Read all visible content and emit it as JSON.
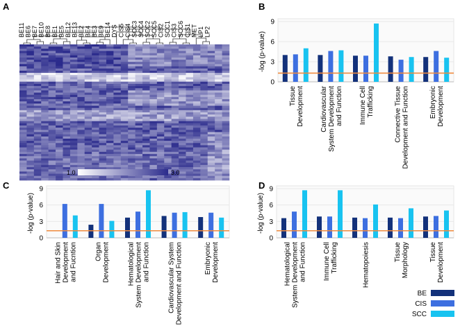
{
  "panels": {
    "a": "A",
    "b": "B",
    "c": "C",
    "d": "D"
  },
  "heatmap": {
    "samples": [
      "BE11",
      "BE6",
      "BE7",
      "BE10",
      "BE8",
      "BE1",
      "BE5",
      "BE12",
      "BE13",
      "BE2",
      "BE4",
      "BE3",
      "BE9",
      "BE14",
      "DYS",
      "CIS5",
      "CIS4",
      "SCC3",
      "SCC4",
      "SCC2",
      "SCC5",
      "CIS2",
      "SCC1",
      "CIS3",
      "SCC6",
      "CIS1",
      "MET",
      "LP1",
      "LP2"
    ],
    "colorbar_min": "1.0",
    "colorbar_max": "3.0",
    "colors": {
      "low": "#ffffff",
      "high": "#2b2b8c"
    }
  },
  "legend": [
    {
      "label": "BE",
      "color": "#13317a"
    },
    {
      "label": "CIS",
      "color": "#3d6fe0"
    },
    {
      "label": "SCC",
      "color": "#18c3f0"
    }
  ],
  "threshold_color": "#f08a3c",
  "chart_data": [
    {
      "panel": "B",
      "type": "bar",
      "ylabel": "-log (p-value)",
      "yticks": [
        0,
        3,
        6,
        9
      ],
      "ylim": [
        0,
        9
      ],
      "threshold": 1.3,
      "categories": [
        [
          "Tissue",
          "Development"
        ],
        [
          "Cardiovascular",
          "System Development",
          "and Function"
        ],
        [
          "Immune Cell",
          "Trafficking"
        ],
        [
          "Connective Tissue",
          "Development and Function"
        ],
        [
          "Embryonic",
          "Development"
        ]
      ],
      "series": [
        {
          "name": "BE",
          "values": [
            4.0,
            4.0,
            3.9,
            3.8,
            3.7
          ]
        },
        {
          "name": "CIS",
          "values": [
            4.1,
            4.6,
            3.9,
            3.3,
            4.6
          ]
        },
        {
          "name": "SCC",
          "values": [
            5.0,
            4.7,
            8.7,
            3.7,
            3.6
          ]
        }
      ]
    },
    {
      "panel": "C",
      "type": "bar",
      "ylabel": "-log (p-value)",
      "yticks": [
        0,
        3,
        6,
        9
      ],
      "ylim": [
        0,
        9
      ],
      "threshold": 1.3,
      "categories": [
        [
          "Hair and Skin",
          "Development",
          "and Fucntion"
        ],
        [
          "Organ",
          "Development"
        ],
        [
          "Hematological",
          "System Development",
          "and Function"
        ],
        [
          "Cardiovascular System",
          "Development and Function"
        ],
        [
          "Embryonic",
          "Development"
        ]
      ],
      "series": [
        {
          "name": "BE",
          "values": [
            null,
            2.4,
            3.7,
            4.0,
            3.8
          ]
        },
        {
          "name": "CIS",
          "values": [
            6.2,
            6.2,
            4.8,
            4.6,
            4.6
          ]
        },
        {
          "name": "SCC",
          "values": [
            4.1,
            3.1,
            8.7,
            4.7,
            3.7
          ]
        }
      ]
    },
    {
      "panel": "D",
      "type": "bar",
      "ylabel": "-log (p-value)",
      "yticks": [
        0,
        3,
        6,
        9
      ],
      "ylim": [
        0,
        9
      ],
      "threshold": 1.3,
      "categories": [
        [
          "Hematological",
          "System Development",
          "and Function"
        ],
        [
          "Immune Cell",
          "Trafficking"
        ],
        [
          "Hematopoiesis"
        ],
        [
          "Tissue",
          "Morphology"
        ],
        [
          "Tissue",
          "Development"
        ]
      ],
      "series": [
        {
          "name": "BE",
          "values": [
            3.6,
            3.9,
            3.7,
            3.7,
            3.9
          ]
        },
        {
          "name": "CIS",
          "values": [
            4.8,
            3.9,
            3.6,
            3.6,
            4.0
          ]
        },
        {
          "name": "SCC",
          "values": [
            8.7,
            8.7,
            6.1,
            5.4,
            5.0
          ]
        }
      ]
    }
  ]
}
